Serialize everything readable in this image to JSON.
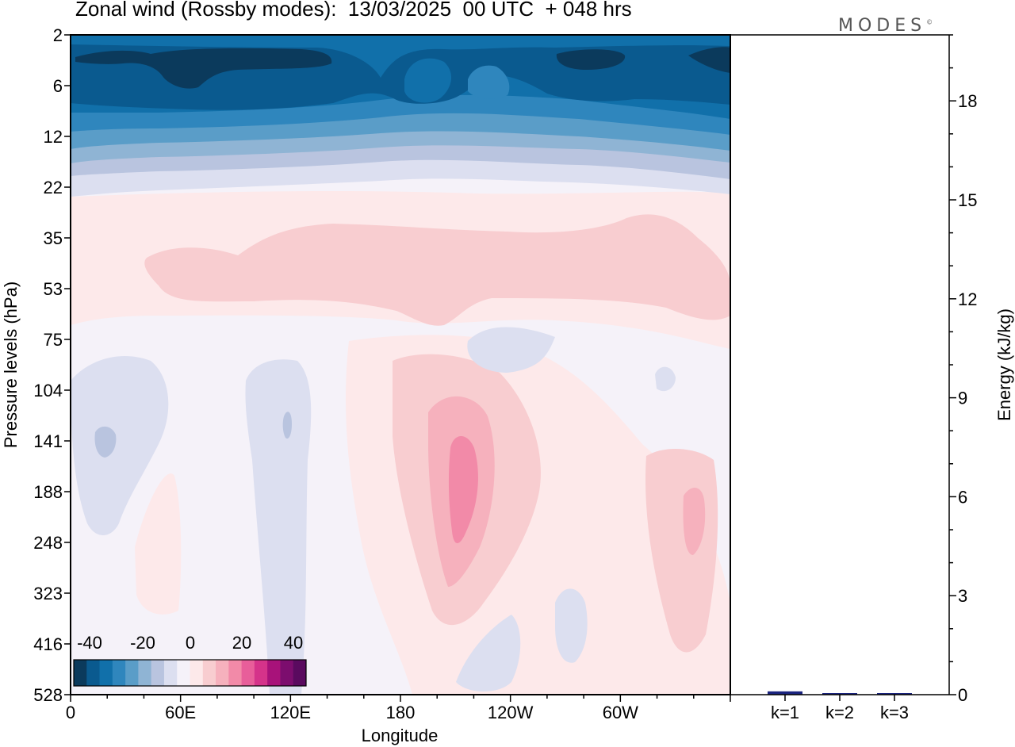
{
  "title": "Zonal wind (Rossby modes):  13/03/2025  00 UTC  + 048 hrs",
  "logo": "MODES",
  "logo_mark": "©",
  "chart_data": [
    {
      "type": "heatmap",
      "xlabel": "Longitude",
      "ylabel": "Pressure levels (hPa)",
      "x_ticks": [
        "0",
        "60E",
        "120E",
        "180",
        "120W",
        "60W"
      ],
      "y_ticks": [
        "2",
        "6",
        "12",
        "22",
        "35",
        "53",
        "75",
        "104",
        "141",
        "188",
        "248",
        "323",
        "416",
        "528"
      ],
      "colorbar": {
        "ticks": [
          "-40",
          "-20",
          "0",
          "20",
          "40"
        ],
        "colors": [
          "#0b3a5c",
          "#0a5a8f",
          "#1170aa",
          "#2f86bd",
          "#5a9dc8",
          "#8fb4d4",
          "#b9c4df",
          "#dcdff0",
          "#f5f2f9",
          "#fde9ea",
          "#f8cdd0",
          "#f6b1bd",
          "#f28aa8",
          "#e85e9a",
          "#d5338a",
          "#a8127a",
          "#7c0d6e",
          "#5a0a5f"
        ]
      },
      "regions": [
        {
          "level": "-40",
          "fill": "#0b3a5c"
        },
        {
          "level": "-35",
          "fill": "#0a5a8f"
        },
        {
          "level": "-30",
          "fill": "#1170aa"
        },
        {
          "level": "-25",
          "fill": "#2f86bd"
        },
        {
          "level": "-20",
          "fill": "#5a9dc8"
        },
        {
          "level": "-15",
          "fill": "#8fb4d4"
        },
        {
          "level": "-10",
          "fill": "#b9c4df"
        },
        {
          "level": "-5",
          "fill": "#dcdff0"
        },
        {
          "level": "0",
          "fill": "#f5f2f9"
        },
        {
          "level": "5",
          "fill": "#fde9ea"
        },
        {
          "level": "10",
          "fill": "#f8cdd0"
        },
        {
          "level": "15",
          "fill": "#f6b1bd"
        },
        {
          "level": "20",
          "fill": "#f28aa8"
        }
      ]
    },
    {
      "type": "bar",
      "categories": [
        "k=1",
        "k=2",
        "k=3"
      ],
      "values": [
        0.1,
        0.03,
        0.02
      ],
      "ylabel": "Energy (kJ/kg)",
      "y_ticks": [
        "0",
        "3",
        "6",
        "9",
        "12",
        "15",
        "18"
      ],
      "ylim": [
        0,
        20
      ],
      "bar_color": "#1a237e"
    }
  ]
}
